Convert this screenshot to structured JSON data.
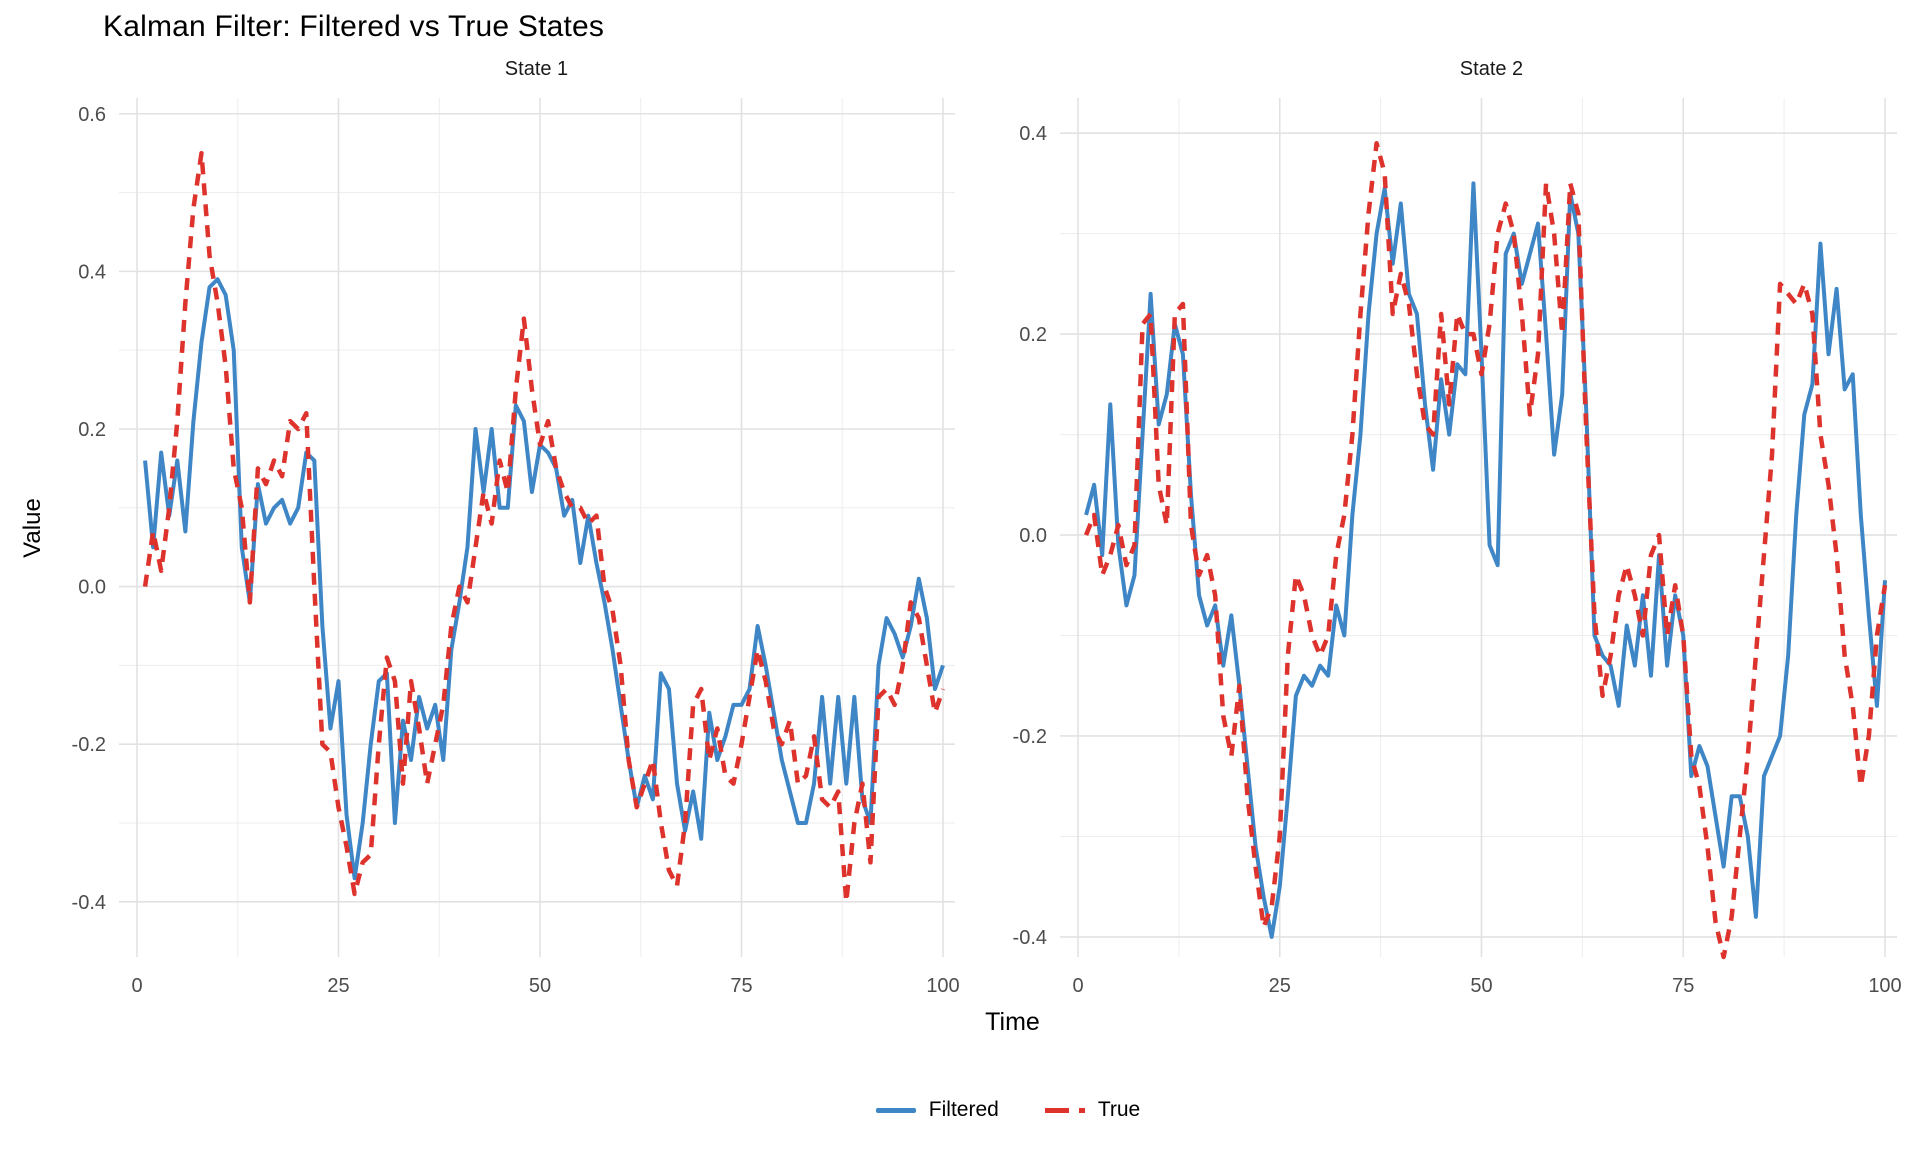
{
  "title": "Kalman Filter: Filtered vs True States",
  "colors": {
    "filtered": "#3E86C6",
    "true": "#DE332C",
    "grid_major": "#E2E2E2",
    "grid_minor": "#EDEDED",
    "tick_text": "#4D4D4D",
    "title_text": "#000000"
  },
  "axes": {
    "x_title": "Time",
    "y_title": "Value"
  },
  "legend": {
    "items": [
      {
        "label": "Filtered",
        "style": "solid",
        "color_key": "filtered"
      },
      {
        "label": "True",
        "style": "dashed",
        "color_key": "true"
      }
    ]
  },
  "chart_data": {
    "type": "line",
    "title": "Kalman Filter: Filtered vs True States",
    "xlabel": "Time",
    "ylabel": "Value",
    "grid": true,
    "legend_position": "bottom",
    "x": [
      1,
      2,
      3,
      4,
      5,
      6,
      7,
      8,
      9,
      10,
      11,
      12,
      13,
      14,
      15,
      16,
      17,
      18,
      19,
      20,
      21,
      22,
      23,
      24,
      25,
      26,
      27,
      28,
      29,
      30,
      31,
      32,
      33,
      34,
      35,
      36,
      37,
      38,
      39,
      40,
      41,
      42,
      43,
      44,
      45,
      46,
      47,
      48,
      49,
      50,
      51,
      52,
      53,
      54,
      55,
      56,
      57,
      58,
      59,
      60,
      61,
      62,
      63,
      64,
      65,
      66,
      67,
      68,
      69,
      70,
      71,
      72,
      73,
      74,
      75,
      76,
      77,
      78,
      79,
      80,
      81,
      82,
      83,
      84,
      85,
      86,
      87,
      88,
      89,
      90,
      91,
      92,
      93,
      94,
      95,
      96,
      97,
      98,
      99,
      100
    ],
    "facets": [
      {
        "title": "State 1",
        "xlim": [
          0,
          100
        ],
        "ylim": [
          -0.47,
          0.62
        ],
        "x_ticks": [
          0,
          25,
          50,
          75,
          100
        ],
        "x_tick_labels": [
          "0",
          "25",
          "50",
          "75",
          "100"
        ],
        "x_minor": [
          12.5,
          37.5,
          62.5,
          87.5
        ],
        "y_ticks": [
          0.6,
          0.4,
          0.2,
          0.0,
          -0.2,
          -0.4
        ],
        "y_tick_labels": [
          "0.6",
          "0.4",
          "0.2",
          "0.0",
          "-0.2",
          "-0.4"
        ],
        "y_minor": [
          0.5,
          0.3,
          0.1,
          -0.1,
          -0.3
        ],
        "series": [
          {
            "name": "Filtered",
            "style": "solid",
            "color_key": "filtered",
            "values": [
              0.16,
              0.05,
              0.17,
              0.09,
              0.16,
              0.07,
              0.21,
              0.31,
              0.38,
              0.39,
              0.37,
              0.3,
              0.05,
              -0.02,
              0.13,
              0.08,
              0.1,
              0.11,
              0.08,
              0.1,
              0.17,
              0.16,
              -0.05,
              -0.18,
              -0.12,
              -0.29,
              -0.37,
              -0.3,
              -0.2,
              -0.12,
              -0.11,
              -0.3,
              -0.17,
              -0.22,
              -0.14,
              -0.18,
              -0.15,
              -0.22,
              -0.08,
              -0.02,
              0.05,
              0.2,
              0.12,
              0.2,
              0.1,
              0.1,
              0.23,
              0.21,
              0.12,
              0.18,
              0.17,
              0.15,
              0.09,
              0.11,
              0.03,
              0.09,
              0.03,
              -0.02,
              -0.08,
              -0.15,
              -0.22,
              -0.28,
              -0.24,
              -0.27,
              -0.11,
              -0.13,
              -0.25,
              -0.31,
              -0.26,
              -0.32,
              -0.16,
              -0.22,
              -0.19,
              -0.15,
              -0.15,
              -0.13,
              -0.05,
              -0.1,
              -0.16,
              -0.22,
              -0.26,
              -0.3,
              -0.3,
              -0.25,
              -0.14,
              -0.25,
              -0.14,
              -0.25,
              -0.14,
              -0.27,
              -0.3,
              -0.1,
              -0.04,
              -0.06,
              -0.09,
              -0.05,
              0.01,
              -0.04,
              -0.13,
              -0.1
            ]
          },
          {
            "name": "True",
            "style": "dashed",
            "color_key": "true",
            "values": [
              0.0,
              0.07,
              0.02,
              0.1,
              0.21,
              0.36,
              0.48,
              0.55,
              0.42,
              0.36,
              0.28,
              0.15,
              0.1,
              -0.02,
              0.15,
              0.13,
              0.16,
              0.14,
              0.21,
              0.2,
              0.22,
              0.0,
              -0.2,
              -0.21,
              -0.28,
              -0.33,
              -0.39,
              -0.35,
              -0.34,
              -0.2,
              -0.09,
              -0.12,
              -0.25,
              -0.12,
              -0.18,
              -0.25,
              -0.2,
              -0.15,
              -0.05,
              0.0,
              -0.02,
              0.05,
              0.12,
              0.08,
              0.16,
              0.12,
              0.25,
              0.34,
              0.25,
              0.18,
              0.21,
              0.15,
              0.12,
              0.1,
              0.1,
              0.08,
              0.09,
              0.0,
              -0.03,
              -0.1,
              -0.22,
              -0.28,
              -0.25,
              -0.22,
              -0.3,
              -0.36,
              -0.38,
              -0.3,
              -0.15,
              -0.13,
              -0.22,
              -0.18,
              -0.24,
              -0.25,
              -0.2,
              -0.14,
              -0.08,
              -0.12,
              -0.18,
              -0.2,
              -0.17,
              -0.25,
              -0.24,
              -0.19,
              -0.27,
              -0.28,
              -0.26,
              -0.4,
              -0.3,
              -0.25,
              -0.35,
              -0.14,
              -0.13,
              -0.15,
              -0.1,
              -0.02,
              -0.04,
              -0.1,
              -0.16,
              -0.13
            ]
          }
        ]
      },
      {
        "title": "State 2",
        "xlim": [
          0,
          100
        ],
        "ylim": [
          -0.42,
          0.435
        ],
        "x_ticks": [
          0,
          25,
          50,
          75,
          100
        ],
        "x_tick_labels": [
          "0",
          "25",
          "50",
          "75",
          "100"
        ],
        "x_minor": [
          12.5,
          37.5,
          62.5,
          87.5
        ],
        "y_ticks": [
          0.4,
          0.2,
          0.0,
          -0.2,
          -0.4
        ],
        "y_tick_labels": [
          "0.4",
          "0.2",
          "0.0",
          "-0.2",
          "-0.4"
        ],
        "y_minor": [
          0.3,
          0.1,
          -0.1,
          -0.3
        ],
        "series": [
          {
            "name": "Filtered",
            "style": "solid",
            "color_key": "filtered",
            "values": [
              0.02,
              0.05,
              -0.02,
              0.13,
              -0.01,
              -0.07,
              -0.04,
              0.1,
              0.24,
              0.11,
              0.14,
              0.21,
              0.18,
              0.04,
              -0.06,
              -0.09,
              -0.07,
              -0.13,
              -0.08,
              -0.15,
              -0.23,
              -0.31,
              -0.36,
              -0.4,
              -0.35,
              -0.26,
              -0.16,
              -0.14,
              -0.15,
              -0.13,
              -0.14,
              -0.07,
              -0.1,
              0.02,
              0.1,
              0.22,
              0.3,
              0.345,
              0.27,
              0.33,
              0.24,
              0.22,
              0.13,
              0.065,
              0.155,
              0.1,
              0.17,
              0.16,
              0.35,
              0.18,
              -0.01,
              -0.03,
              0.28,
              0.3,
              0.25,
              0.28,
              0.31,
              0.2,
              0.08,
              0.14,
              0.34,
              0.3,
              0.12,
              -0.1,
              -0.12,
              -0.13,
              -0.17,
              -0.09,
              -0.13,
              -0.06,
              -0.14,
              -0.02,
              -0.13,
              -0.06,
              -0.1,
              -0.24,
              -0.21,
              -0.23,
              -0.28,
              -0.33,
              -0.26,
              -0.26,
              -0.3,
              -0.38,
              -0.24,
              -0.22,
              -0.2,
              -0.12,
              0.02,
              0.12,
              0.15,
              0.29,
              0.18,
              0.245,
              0.145,
              0.16,
              0.02,
              -0.08,
              -0.17,
              -0.045
            ]
          },
          {
            "name": "True",
            "style": "dashed",
            "color_key": "true",
            "values": [
              0.0,
              0.02,
              -0.04,
              -0.02,
              0.01,
              -0.03,
              -0.01,
              0.21,
              0.22,
              0.05,
              0.01,
              0.22,
              0.23,
              0.01,
              -0.04,
              -0.02,
              -0.06,
              -0.18,
              -0.22,
              -0.15,
              -0.26,
              -0.33,
              -0.39,
              -0.37,
              -0.3,
              -0.12,
              -0.04,
              -0.06,
              -0.1,
              -0.12,
              -0.1,
              -0.02,
              0.02,
              0.1,
              0.22,
              0.32,
              0.39,
              0.36,
              0.22,
              0.26,
              0.23,
              0.16,
              0.11,
              0.1,
              0.22,
              0.13,
              0.22,
              0.2,
              0.2,
              0.16,
              0.21,
              0.3,
              0.33,
              0.3,
              0.22,
              0.12,
              0.18,
              0.35,
              0.3,
              0.2,
              0.35,
              0.32,
              0.1,
              -0.08,
              -0.16,
              -0.12,
              -0.06,
              -0.03,
              -0.06,
              -0.1,
              -0.02,
              0.0,
              -0.1,
              -0.05,
              -0.1,
              -0.22,
              -0.25,
              -0.31,
              -0.385,
              -0.42,
              -0.38,
              -0.3,
              -0.22,
              -0.12,
              -0.02,
              0.08,
              0.25,
              0.24,
              0.23,
              0.25,
              0.22,
              0.1,
              0.05,
              -0.02,
              -0.12,
              -0.17,
              -0.25,
              -0.2,
              -0.1,
              -0.05
            ]
          }
        ]
      }
    ]
  }
}
